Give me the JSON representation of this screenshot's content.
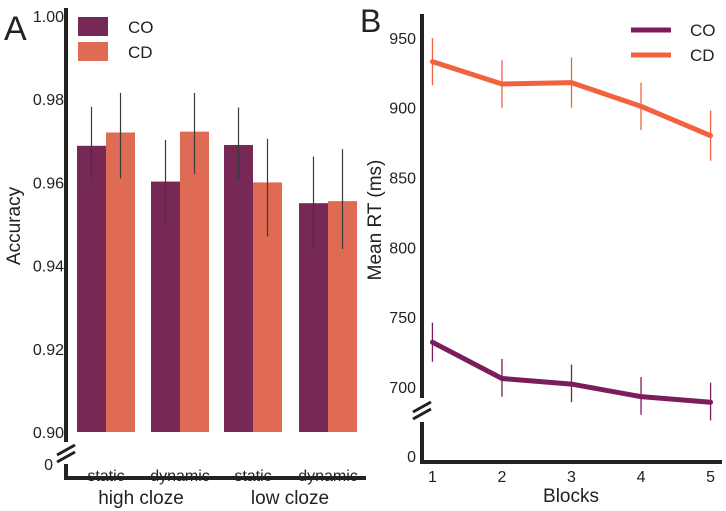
{
  "chart_data": [
    {
      "panel_label": "A",
      "type": "bar",
      "ylabel": "Accuracy",
      "xlabel": "",
      "ylim": [
        0.9,
        1.0
      ],
      "y_ticks": [
        "0.90",
        "0.92",
        "0.94",
        "0.96",
        "0.98",
        "1.00"
      ],
      "y_tick_values": [
        0.9,
        0.92,
        0.94,
        0.96,
        0.98,
        1.0
      ],
      "y_break_label": "0",
      "categories": [
        "static",
        "dynamic",
        "static",
        "dynamic"
      ],
      "groups": [
        "high cloze",
        "low cloze"
      ],
      "series": [
        {
          "name": "CO",
          "color": "#772956",
          "values": [
            0.9688,
            0.9602,
            0.969,
            0.955
          ],
          "err_low": [
            0.96,
            0.95,
            0.9605,
            0.944
          ],
          "err_high": [
            0.9782,
            0.9702,
            0.978,
            0.9662
          ]
        },
        {
          "name": "CD",
          "color": "#df6b55",
          "values": [
            0.972,
            0.9722,
            0.96,
            0.9555
          ],
          "err_low": [
            0.961,
            0.962,
            0.947,
            0.944
          ],
          "err_high": [
            0.9815,
            0.9815,
            0.9705,
            0.968
          ]
        }
      ],
      "legend": [
        "CO",
        "CD"
      ],
      "legend_position": "top-left"
    },
    {
      "panel_label": "B",
      "type": "line",
      "xlabel": "Blocks",
      "ylabel": "Mean RT (ms)",
      "x": [
        1,
        2,
        3,
        4,
        5
      ],
      "xlim": [
        0.85,
        5.15
      ],
      "ylim": [
        682,
        965
      ],
      "y_ticks": [
        "700",
        "750",
        "800",
        "850",
        "900",
        "950"
      ],
      "y_tick_values": [
        700,
        750,
        800,
        850,
        900,
        950
      ],
      "y_break_label": "0",
      "series": [
        {
          "name": "CO",
          "color": "#7b1c5d",
          "values": [
            732,
            706,
            702,
            693,
            689
          ],
          "err_low": [
            718,
            693,
            689,
            680,
            676
          ],
          "err_high": [
            746,
            720,
            716,
            707,
            703
          ]
        },
        {
          "name": "CD",
          "color": "#f2633d",
          "values": [
            933,
            917,
            918,
            901,
            880
          ],
          "err_low": [
            916,
            900,
            900,
            884,
            862
          ],
          "err_high": [
            950,
            934,
            936,
            918,
            898
          ]
        }
      ],
      "legend": [
        "CO",
        "CD"
      ],
      "legend_position": "top-right"
    }
  ]
}
